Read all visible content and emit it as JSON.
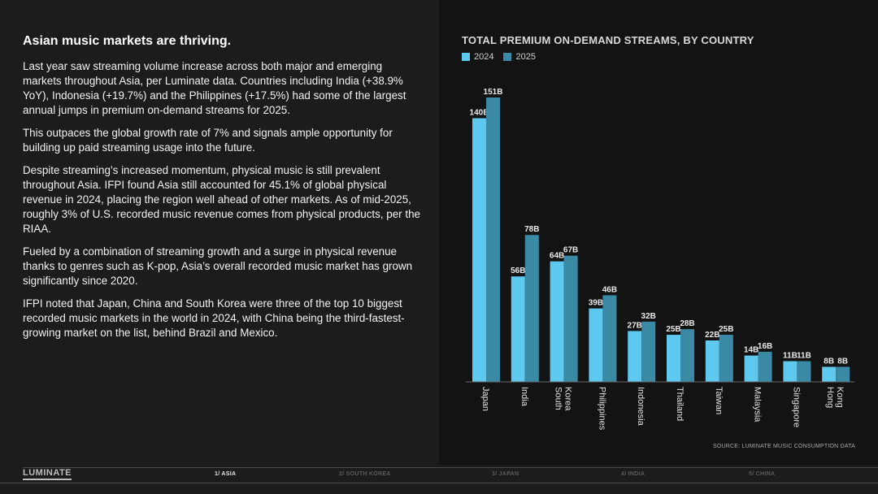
{
  "left": {
    "headline": "Asian music markets are thriving.",
    "paragraphs": [
      "Last year saw streaming volume increase across both major and emerging markets throughout Asia, per Luminate data. Countries including India (+38.9% YoY), Indonesia (+19.7%) and the Philippines (+17.5%) had some of the largest annual jumps in premium on-demand streams for 2025.",
      "This outpaces the global growth rate of 7% and signals ample opportunity for building up paid streaming usage into the future.",
      "Despite streaming’s increased momentum, physical music is still prevalent throughout Asia. IFPI found Asia still accounted for 45.1% of global physical revenue in 2024, placing the region well ahead of other markets. As of mid-2025, roughly 3% of U.S. recorded music revenue comes from physical products, per the RIAA.",
      "Fueled by a combination of streaming growth and a surge in physical revenue thanks to genres such as K-pop, Asia’s overall recorded music market has grown significantly since 2020.",
      "IFPI noted that Japan, China and South Korea were three of the top 10 biggest recorded music markets in the world in 2024, with China being the third-fastest-growing market on the list, behind Brazil and Mexico."
    ]
  },
  "source": "SOURCE: LUMINATE MUSIC CONSUMPTION DATA",
  "footer": {
    "logo": "LUMINATE",
    "nav": [
      {
        "label": "1/ ASIA",
        "active": true
      },
      {
        "label": "2/ SOUTH KOREA",
        "active": false
      },
      {
        "label": "3/ JAPAN",
        "active": false
      },
      {
        "label": "4/ INDIA",
        "active": false
      },
      {
        "label": "5/ CHINA",
        "active": false
      }
    ]
  },
  "colors": {
    "series_2024": "#5ec8ee",
    "series_2025": "#3b8aa5"
  },
  "chart_data": {
    "type": "bar",
    "title": "TOTAL PREMIUM ON-DEMAND STREAMS, BY COUNTRY",
    "xlabel": "",
    "ylabel": "",
    "ylim": [
      0,
      151
    ],
    "unit_suffix": "B",
    "categories": [
      "Japan",
      "India",
      "South Korea",
      "Philippines",
      "Indonesia",
      "Thailand",
      "Taiwan",
      "Malaysia",
      "Singapore",
      "Hong Kong"
    ],
    "series": [
      {
        "name": "2024",
        "values": [
          140,
          56,
          64,
          39,
          27,
          25,
          22,
          14,
          11,
          8
        ]
      },
      {
        "name": "2025",
        "values": [
          151,
          78,
          67,
          46,
          32,
          28,
          25,
          16,
          11,
          8
        ]
      }
    ],
    "legend": "top-left",
    "grid": false
  }
}
